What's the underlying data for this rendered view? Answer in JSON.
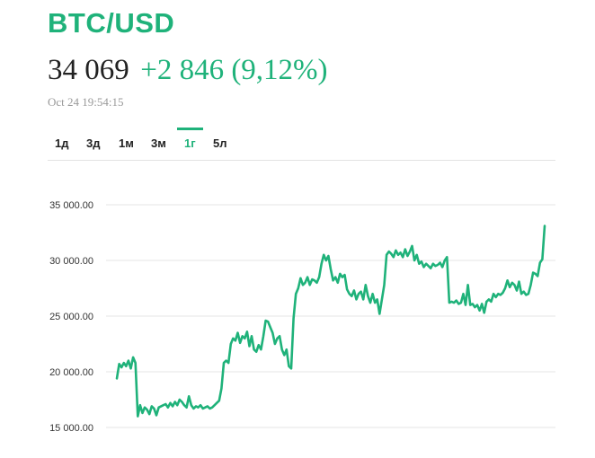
{
  "header": {
    "title": "BTC/USD",
    "price": "34 069",
    "change": "+2 846 (9,12%)",
    "timestamp": "Oct 24 19:54:15"
  },
  "tabs": [
    {
      "label": "1д",
      "active": false
    },
    {
      "label": "3д",
      "active": false
    },
    {
      "label": "1м",
      "active": false
    },
    {
      "label": "3м",
      "active": false
    },
    {
      "label": "1г",
      "active": true
    },
    {
      "label": "5л",
      "active": false
    }
  ],
  "colors": {
    "accent": "#1fb27a",
    "text": "#222222",
    "muted": "#999999",
    "grid": "#e6e6e6"
  },
  "chart_data": {
    "type": "line",
    "title": "",
    "xlabel": "",
    "ylabel": "",
    "ylim": [
      15000,
      35000
    ],
    "grid": true,
    "legend": "none",
    "yticks": [
      {
        "value": 35000,
        "label": "35 000.00"
      },
      {
        "value": 30000,
        "label": "30 000.00"
      },
      {
        "value": 25000,
        "label": "25 000.00"
      },
      {
        "value": 20000,
        "label": "20 000.00"
      },
      {
        "value": 15000,
        "label": "15 000.00"
      }
    ],
    "series": [
      {
        "color": "#1fb27a",
        "values": [
          19400,
          20700,
          20400,
          20800,
          20500,
          21000,
          20300,
          21300,
          20800,
          16000,
          17000,
          16300,
          16800,
          16600,
          16200,
          16900,
          16700,
          16100,
          16800,
          16900,
          17000,
          17100,
          16800,
          17200,
          16900,
          17300,
          17000,
          17500,
          17300,
          17000,
          16800,
          17800,
          17000,
          16700,
          16900,
          16800,
          17000,
          16700,
          16800,
          16900,
          16700,
          16800,
          17000,
          17200,
          17400,
          18500,
          20800,
          21000,
          20800,
          22500,
          23000,
          22800,
          23500,
          22600,
          23200,
          23000,
          23600,
          22300,
          23200,
          22000,
          21800,
          22400,
          22000,
          23200,
          24600,
          24500,
          24000,
          23500,
          22500,
          23000,
          23200,
          22000,
          21500,
          22000,
          20500,
          20300,
          24800,
          27000,
          27500,
          28400,
          27800,
          28000,
          28500,
          27800,
          28300,
          28200,
          28000,
          28500,
          29700,
          30500,
          30000,
          30400,
          29200,
          28200,
          28500,
          28000,
          28800,
          28500,
          28700,
          27400,
          27000,
          26800,
          27300,
          26500,
          27000,
          27200,
          26500,
          27800,
          26800,
          26200,
          27000,
          26200,
          26500,
          25200,
          26500,
          27800,
          30500,
          30800,
          30600,
          30300,
          30900,
          30500,
          30700,
          30300,
          31000,
          30400,
          30800,
          31300,
          30000,
          30500,
          29700,
          29900,
          29400,
          29700,
          29500,
          29300,
          29700,
          29500,
          29600,
          29800,
          29400,
          30000,
          30300,
          26200,
          26300,
          26200,
          26400,
          26100,
          26200,
          27000,
          26000,
          27800,
          26000,
          26100,
          25800,
          26000,
          25500,
          26100,
          25300,
          26300,
          26500,
          26300,
          27000,
          26700,
          27000,
          26900,
          27100,
          27500,
          28200,
          27600,
          28000,
          27800,
          27300,
          28100,
          27000,
          27200,
          26900,
          27000,
          27800,
          28900,
          28800,
          28600,
          29800,
          30100,
          33100
        ]
      }
    ]
  }
}
